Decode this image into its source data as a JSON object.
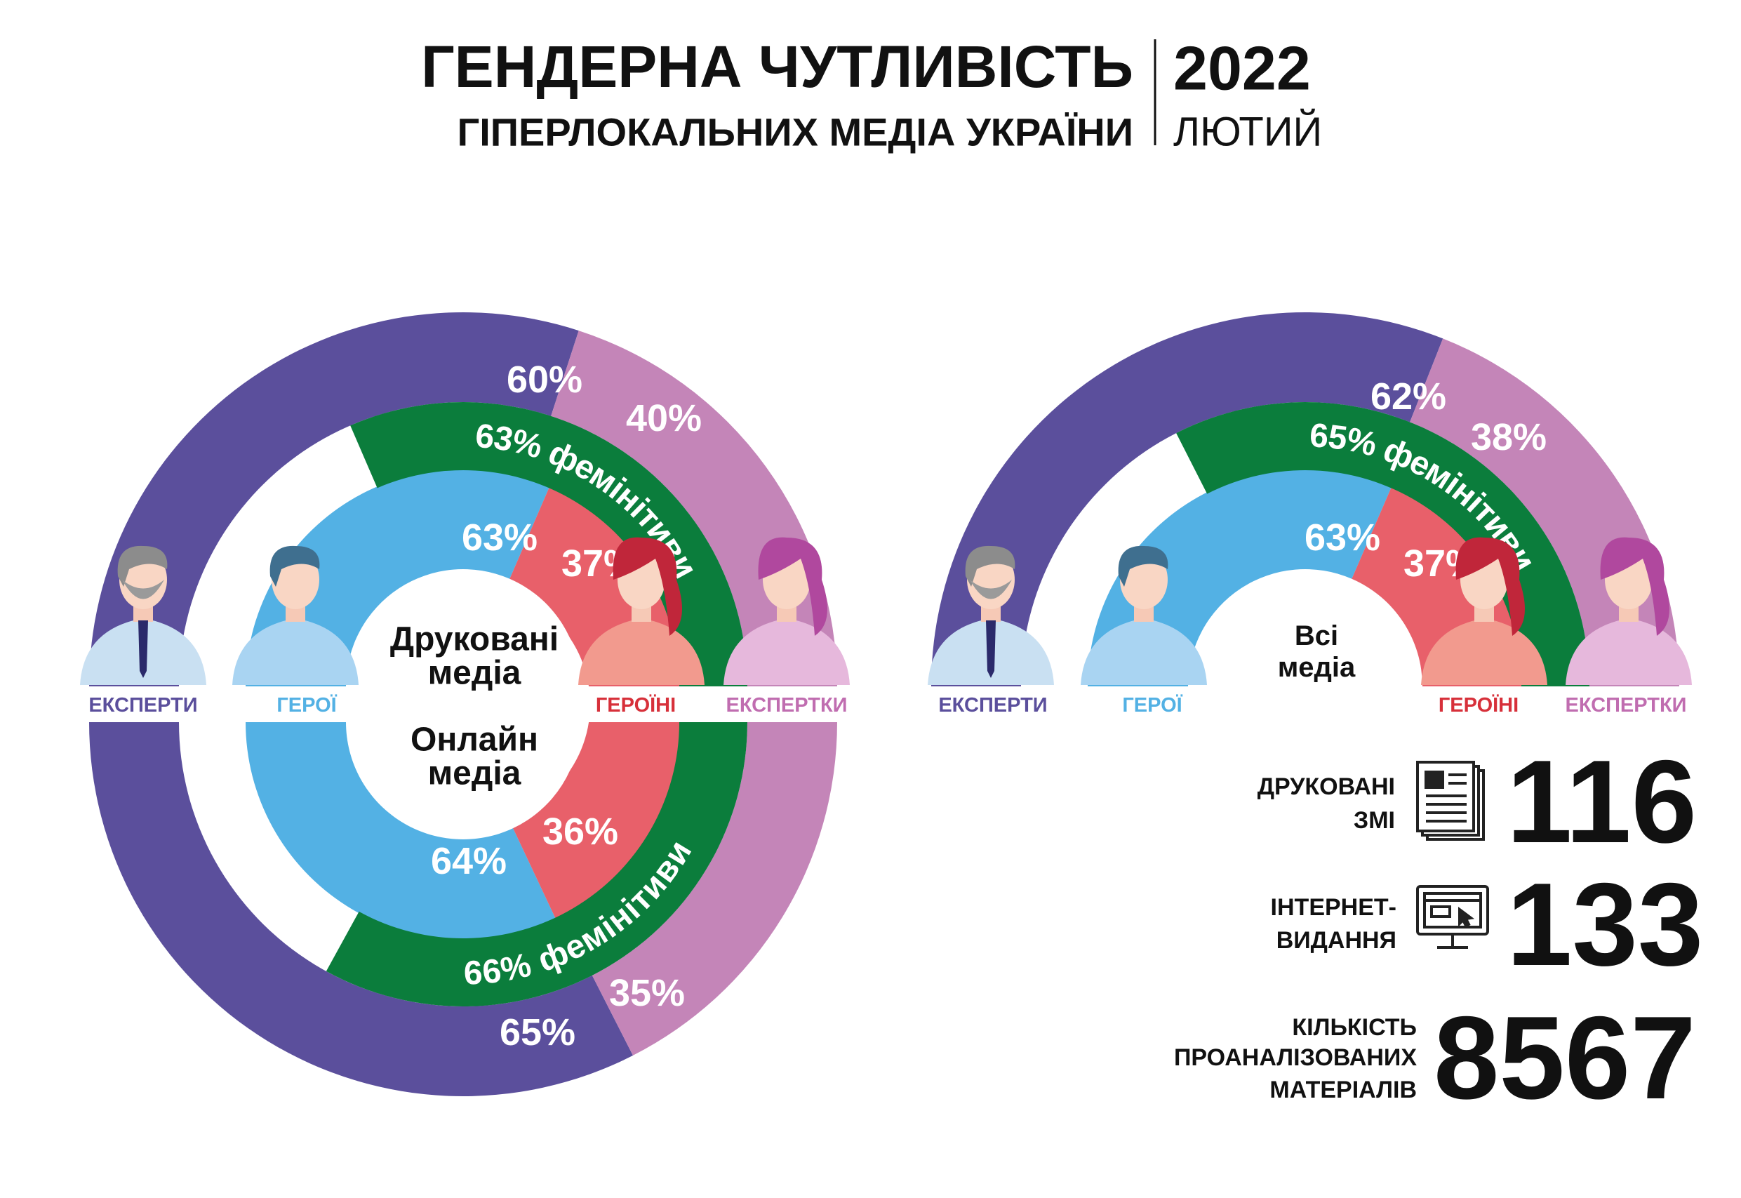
{
  "header": {
    "title": "ГЕНДЕРНА ЧУТЛИВІСТЬ",
    "subtitle": "ГІПЕРЛОКАЛЬНИХ МЕДІА УКРАЇНИ",
    "year": "2022",
    "month": "ЛЮТИЙ"
  },
  "chart_data": [
    {
      "type": "semi-donut",
      "categories": [
        "ЕКСПЕРТИ",
        "ГЕРОЇ",
        "ГЕРОЇНІ",
        "ЕКСПЕРТКИ"
      ],
      "colors": [
        "#5b4f9c",
        "#53b1e4",
        "#e8606a",
        "#c485b8"
      ],
      "feminitives_color": "#0b7d3c",
      "halves": [
        {
          "title": [
            "Друковані",
            "медіа"
          ],
          "values": [
            60,
            63,
            37,
            40
          ],
          "value_labels": [
            "60%",
            "63%",
            "37%",
            "40%"
          ],
          "feminitives": {
            "value": 63,
            "label": "63% фемінітиви"
          }
        },
        {
          "title": [
            "Онлайн",
            "медіа"
          ],
          "values": [
            65,
            64,
            36,
            35
          ],
          "value_labels": [
            "65%",
            "64%",
            "36%",
            "35%"
          ],
          "feminitives": {
            "value": 66,
            "label": "66% фемінітиви"
          }
        }
      ]
    },
    {
      "type": "semi-donut",
      "categories": [
        "ЕКСПЕРТИ",
        "ГЕРОЇ",
        "ГЕРОЇНІ",
        "ЕКСПЕРТКИ"
      ],
      "colors": [
        "#5b4f9c",
        "#53b1e4",
        "#e8606a",
        "#c485b8"
      ],
      "feminitives_color": "#0b7d3c",
      "halves": [
        {
          "title": [
            "Всі",
            "медіа"
          ],
          "values": [
            62,
            63,
            37,
            38
          ],
          "value_labels": [
            "62%",
            "63%",
            "37%",
            "38%"
          ],
          "feminitives": {
            "value": 65,
            "label": "65% фемінітиви"
          }
        }
      ]
    }
  ],
  "stats": [
    {
      "label": [
        "ДРУКОВАНІ",
        "ЗМІ"
      ],
      "value": 116
    },
    {
      "label": [
        "ІНТЕРНЕТ-",
        "ВИДАННЯ"
      ],
      "value": 133
    },
    {
      "label": [
        "КІЛЬКІСТЬ",
        "ПРОАНАЛІЗОВАНИХ",
        "МАТЕРІАЛІВ"
      ],
      "value": 8567
    }
  ]
}
